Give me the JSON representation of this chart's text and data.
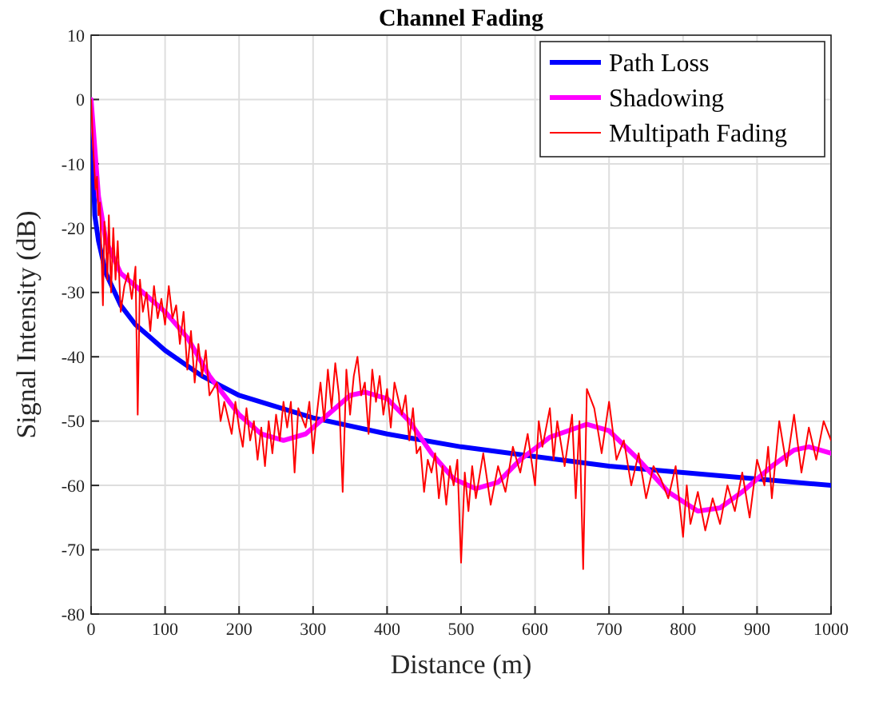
{
  "chart_data": {
    "type": "line",
    "title": "Channel Fading",
    "xlabel": "Distance (m)",
    "ylabel": "Signal Intensity (dB)",
    "xlim": [
      0,
      1000
    ],
    "xticks": [
      0,
      100,
      200,
      300,
      400,
      500,
      600,
      700,
      800,
      900,
      1000
    ],
    "ylim": [
      -80,
      10
    ],
    "yticks": [
      -80,
      -70,
      -60,
      -50,
      -40,
      -30,
      -20,
      -10,
      0,
      10
    ],
    "grid": true,
    "legend": "top right",
    "line_style": "solid",
    "marker": "none",
    "series": [
      {
        "name": "Path Loss",
        "color": "#0000ff",
        "x": [
          1,
          5,
          10,
          20,
          40,
          60,
          80,
          100,
          150,
          200,
          300,
          400,
          500,
          600,
          700,
          800,
          900,
          1000
        ],
        "values": [
          -5,
          -18,
          -22,
          -27,
          -32,
          -35,
          -37,
          -39,
          -43,
          -46,
          -49.5,
          -52,
          -54,
          -55.5,
          -57,
          -58,
          -59,
          -60
        ]
      },
      {
        "name": "Shadowing",
        "color": "#ff00ff",
        "x": [
          0,
          10,
          20,
          40,
          60,
          80,
          100,
          130,
          160,
          200,
          230,
          260,
          290,
          320,
          350,
          370,
          400,
          430,
          460,
          490,
          520,
          550,
          580,
          620,
          670,
          700,
          740,
          780,
          820,
          850,
          880,
          920,
          950,
          970,
          1000
        ],
        "values": [
          0,
          -15,
          -22,
          -27,
          -29,
          -31,
          -33,
          -37,
          -43,
          -49,
          -52,
          -53,
          -52,
          -49,
          -46,
          -45.5,
          -46.5,
          -50,
          -55,
          -59,
          -60.5,
          -59.5,
          -56,
          -52.5,
          -50.5,
          -51.5,
          -56,
          -61,
          -64,
          -63.5,
          -61,
          -57,
          -54.5,
          -54,
          -55
        ]
      },
      {
        "name": "Multipath Fading",
        "color": "#ff0000",
        "x": [
          0,
          3,
          6,
          8,
          10,
          12,
          14,
          16,
          18,
          20,
          22,
          24,
          27,
          30,
          33,
          36,
          40,
          45,
          50,
          55,
          60,
          63,
          66,
          70,
          75,
          80,
          85,
          90,
          95,
          100,
          105,
          110,
          115,
          120,
          125,
          130,
          135,
          140,
          145,
          150,
          155,
          160,
          170,
          175,
          180,
          190,
          195,
          200,
          205,
          210,
          215,
          220,
          225,
          230,
          235,
          240,
          245,
          250,
          255,
          260,
          265,
          270,
          275,
          280,
          290,
          295,
          300,
          305,
          310,
          315,
          320,
          325,
          330,
          335,
          340,
          345,
          350,
          355,
          360,
          365,
          370,
          375,
          380,
          385,
          390,
          395,
          400,
          405,
          410,
          420,
          425,
          430,
          435,
          440,
          445,
          450,
          455,
          460,
          465,
          470,
          475,
          480,
          485,
          490,
          495,
          500,
          505,
          510,
          515,
          520,
          530,
          540,
          550,
          560,
          570,
          580,
          590,
          600,
          605,
          610,
          620,
          625,
          630,
          640,
          650,
          655,
          660,
          665,
          670,
          680,
          690,
          700,
          710,
          720,
          730,
          740,
          750,
          760,
          770,
          780,
          790,
          800,
          805,
          810,
          820,
          830,
          840,
          850,
          860,
          870,
          880,
          890,
          900,
          910,
          915,
          920,
          930,
          940,
          950,
          960,
          970,
          980,
          990,
          1000
        ],
        "values": [
          0,
          -8,
          -14,
          -12,
          -18,
          -16,
          -24,
          -32,
          -19,
          -22,
          -28,
          -18,
          -30,
          -20,
          -28,
          -22,
          -33,
          -29,
          -27,
          -31,
          -26,
          -49,
          -28,
          -33,
          -30,
          -36,
          -29,
          -34,
          -31,
          -35,
          -29,
          -34,
          -32,
          -38,
          -33,
          -42,
          -36,
          -44,
          -38,
          -43,
          -39,
          -46,
          -44,
          -50,
          -47,
          -52,
          -47,
          -51,
          -54,
          -48,
          -53,
          -50,
          -56,
          -51,
          -57,
          -50,
          -55,
          -49,
          -53,
          -47,
          -51,
          -47,
          -58,
          -48,
          -51,
          -47,
          -55,
          -49,
          -44,
          -50,
          -42,
          -48,
          -41,
          -46,
          -61,
          -42,
          -49,
          -43,
          -40,
          -46,
          -44,
          -52,
          -42,
          -47,
          -43,
          -49,
          -45,
          -51,
          -44,
          -49,
          -46,
          -53,
          -48,
          -55,
          -54,
          -61,
          -56,
          -58,
          -55,
          -62,
          -57,
          -63,
          -57,
          -60,
          -56,
          -72,
          -58,
          -64,
          -57,
          -62,
          -55,
          -63,
          -57,
          -61,
          -54,
          -58,
          -52,
          -60,
          -50,
          -54,
          -48,
          -56,
          -50,
          -57,
          -49,
          -62,
          -50,
          -73,
          -45,
          -48,
          -55,
          -47,
          -56,
          -53,
          -60,
          -55,
          -62,
          -57,
          -59,
          -62,
          -57,
          -68,
          -60,
          -66,
          -61,
          -67,
          -62,
          -66,
          -60,
          -64,
          -58,
          -65,
          -56,
          -60,
          -54,
          -62,
          -50,
          -57,
          -49,
          -58,
          -51,
          -56,
          -50,
          -53
        ]
      }
    ]
  }
}
